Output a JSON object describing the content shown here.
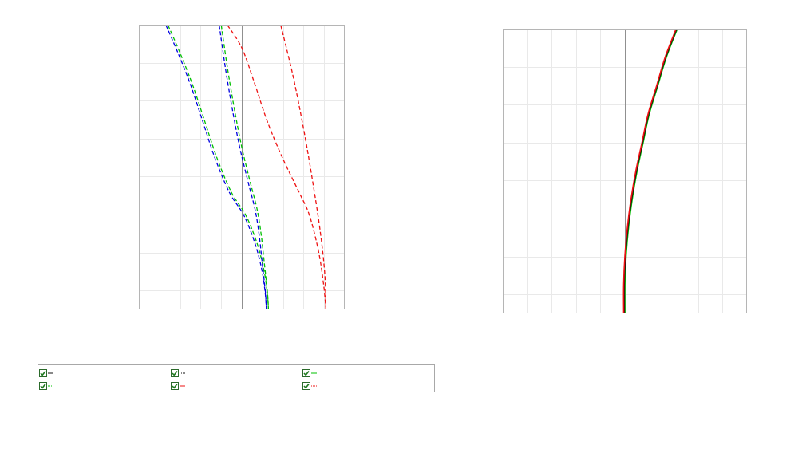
{
  "colors": {
    "blue": "#0000e0",
    "green": "#00c000",
    "red": "#ee1111",
    "black": "#111111",
    "grid": "#e9e9e9",
    "frame": "#b5b5b5",
    "zero_axis": "#909090",
    "checkbox_check": "#1f7a1f"
  },
  "chart_data": [
    {
      "type": "line",
      "xlim": [
        -1.0,
        1.0
      ],
      "ylim": [
        0,
        1
      ],
      "grid": true,
      "series": [
        {
          "color": "blue",
          "dash": "dashed",
          "points": [
            [
              -0.74,
              1.0
            ],
            [
              -0.62,
              0.9
            ],
            [
              -0.5,
              0.79
            ],
            [
              -0.38,
              0.66
            ],
            [
              -0.26,
              0.53
            ],
            [
              -0.12,
              0.41
            ],
            [
              0.02,
              0.33
            ],
            [
              0.13,
              0.23
            ],
            [
              0.2,
              0.13
            ],
            [
              0.23,
              0.05
            ],
            [
              0.24,
              0.0
            ]
          ]
        },
        {
          "color": "green",
          "dash": "dashed",
          "points": [
            [
              -0.72,
              1.0
            ],
            [
              -0.6,
              0.9
            ],
            [
              -0.48,
              0.79
            ],
            [
              -0.36,
              0.66
            ],
            [
              -0.24,
              0.53
            ],
            [
              -0.1,
              0.41
            ],
            [
              0.04,
              0.33
            ],
            [
              0.15,
              0.23
            ],
            [
              0.22,
              0.13
            ],
            [
              0.25,
              0.05
            ],
            [
              0.26,
              0.0
            ]
          ]
        },
        {
          "color": "blue",
          "dash": "dashed",
          "points": [
            [
              -0.22,
              1.0
            ],
            [
              -0.16,
              0.85
            ],
            [
              -0.09,
              0.7
            ],
            [
              -0.02,
              0.57
            ],
            [
              0.06,
              0.45
            ],
            [
              0.13,
              0.35
            ],
            [
              0.17,
              0.26
            ],
            [
              0.2,
              0.16
            ],
            [
              0.23,
              0.06
            ],
            [
              0.24,
              0.0
            ]
          ]
        },
        {
          "color": "green",
          "dash": "dashed",
          "points": [
            [
              -0.2,
              1.0
            ],
            [
              -0.14,
              0.85
            ],
            [
              -0.07,
              0.7
            ],
            [
              0.0,
              0.57
            ],
            [
              0.08,
              0.45
            ],
            [
              0.15,
              0.35
            ],
            [
              0.19,
              0.26
            ],
            [
              0.22,
              0.16
            ],
            [
              0.25,
              0.06
            ],
            [
              0.26,
              0.0
            ]
          ]
        },
        {
          "color": "red",
          "dash": "dashed",
          "points": [
            [
              -0.14,
              1.0
            ],
            [
              0.0,
              0.92
            ],
            [
              0.12,
              0.8
            ],
            [
              0.25,
              0.66
            ],
            [
              0.4,
              0.53
            ],
            [
              0.56,
              0.41
            ],
            [
              0.66,
              0.33
            ],
            [
              0.75,
              0.2
            ],
            [
              0.8,
              0.08
            ],
            [
              0.82,
              0.0
            ]
          ]
        },
        {
          "color": "red",
          "dash": "dashed",
          "points": [
            [
              0.38,
              1.0
            ],
            [
              0.5,
              0.82
            ],
            [
              0.61,
              0.62
            ],
            [
              0.7,
              0.43
            ],
            [
              0.77,
              0.26
            ],
            [
              0.81,
              0.12
            ],
            [
              0.82,
              0.0
            ]
          ]
        }
      ]
    },
    {
      "type": "line",
      "xlim": [
        -1.0,
        1.0
      ],
      "ylim": [
        0,
        1
      ],
      "grid": true,
      "series": [
        {
          "color": "green",
          "dash": "solid",
          "points": [
            [
              0.0,
              0.0
            ],
            [
              0.0,
              0.1
            ],
            [
              0.01,
              0.2
            ],
            [
              0.03,
              0.3
            ],
            [
              0.06,
              0.4
            ],
            [
              0.1,
              0.5
            ],
            [
              0.15,
              0.6
            ],
            [
              0.2,
              0.7
            ],
            [
              0.27,
              0.8
            ],
            [
              0.34,
              0.9
            ],
            [
              0.43,
              1.0
            ]
          ]
        },
        {
          "color": "black",
          "dash": "solid",
          "points": [
            [
              -0.005,
              0.0
            ],
            [
              -0.005,
              0.1
            ],
            [
              0.005,
              0.2
            ],
            [
              0.025,
              0.3
            ],
            [
              0.055,
              0.4
            ],
            [
              0.095,
              0.5
            ],
            [
              0.145,
              0.6
            ],
            [
              0.195,
              0.7
            ],
            [
              0.265,
              0.8
            ],
            [
              0.335,
              0.9
            ],
            [
              0.425,
              1.0
            ]
          ]
        },
        {
          "color": "red",
          "dash": "solid",
          "points": [
            [
              -0.01,
              0.0
            ],
            [
              -0.01,
              0.1
            ],
            [
              0.0,
              0.2
            ],
            [
              0.02,
              0.3
            ],
            [
              0.05,
              0.4
            ],
            [
              0.09,
              0.5
            ],
            [
              0.14,
              0.6
            ],
            [
              0.19,
              0.7
            ],
            [
              0.26,
              0.8
            ],
            [
              0.33,
              0.9
            ],
            [
              0.42,
              1.0
            ]
          ]
        }
      ]
    }
  ],
  "legend": {
    "placement": "bottom-left",
    "items": [
      {
        "checked": true,
        "color": "black",
        "style": "solid"
      },
      {
        "checked": true,
        "color": "black",
        "style": "dotted"
      },
      {
        "checked": true,
        "color": "green",
        "style": "solid"
      },
      {
        "checked": true,
        "color": "green",
        "style": "dotted"
      },
      {
        "checked": true,
        "color": "red",
        "style": "solid"
      },
      {
        "checked": true,
        "color": "red",
        "style": "dotted"
      }
    ]
  }
}
